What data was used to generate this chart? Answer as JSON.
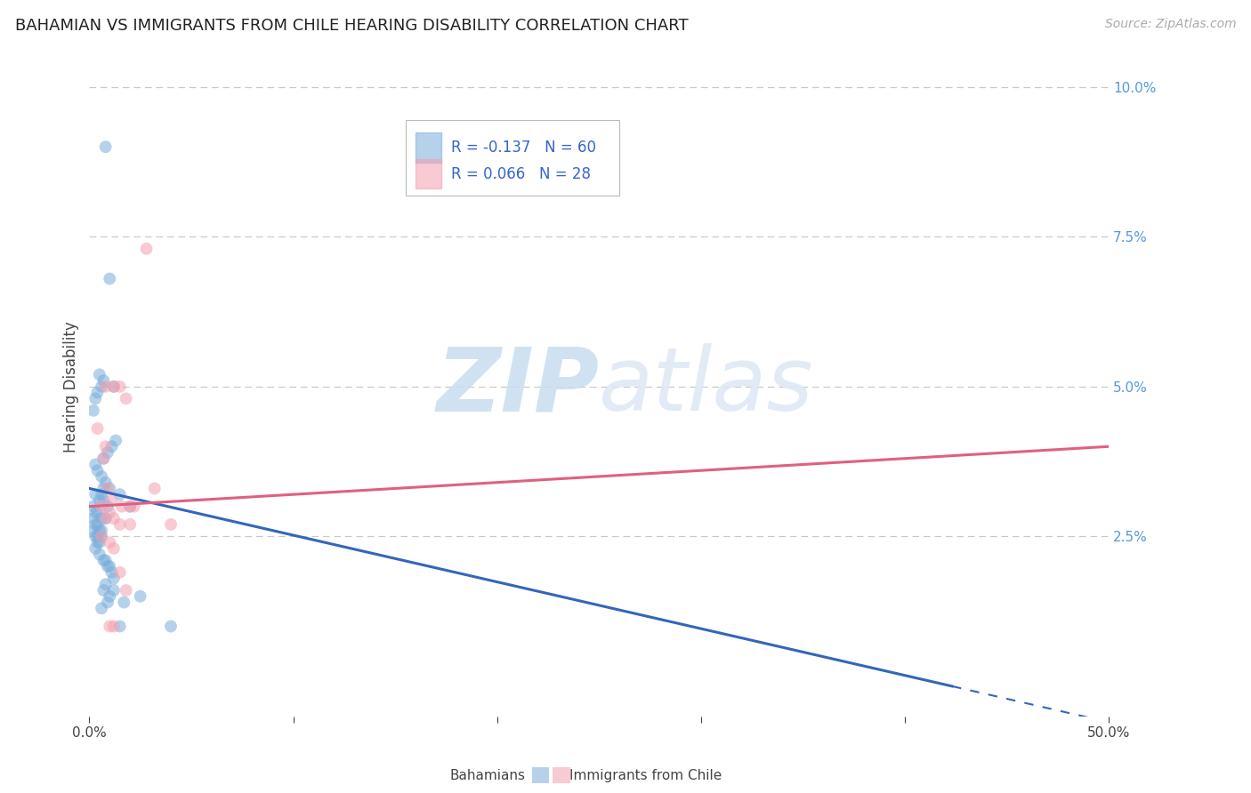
{
  "title": "BAHAMIAN VS IMMIGRANTS FROM CHILE HEARING DISABILITY CORRELATION CHART",
  "source": "Source: ZipAtlas.com",
  "ylabel": "Hearing Disability",
  "xlim": [
    0.0,
    0.5
  ],
  "ylim": [
    -0.005,
    0.105
  ],
  "ylim_data": [
    0.0,
    0.1
  ],
  "xtick_positions": [
    0.0,
    0.1,
    0.2,
    0.3,
    0.4,
    0.5
  ],
  "xtick_labels": [
    "0.0%",
    "",
    "",
    "",
    "",
    "50.0%"
  ],
  "yticks_right": [
    0.025,
    0.05,
    0.075,
    0.1
  ],
  "ytick_labels_right": [
    "2.5%",
    "5.0%",
    "7.5%",
    "10.0%"
  ],
  "grid_color": "#c8c8c8",
  "background_color": "#ffffff",
  "blue_color": "#7aaddc",
  "pink_color": "#f4a0b0",
  "blue_trend_color": "#3366bb",
  "pink_trend_color": "#e06080",
  "legend_R1": "R = -0.137",
  "legend_N1": "N = 60",
  "legend_R2": "R = 0.066",
  "legend_N2": "N = 28",
  "legend_label1": "Bahamians",
  "legend_label2": "Immigrants from Chile",
  "blue_scatter_x": [
    0.008,
    0.01,
    0.005,
    0.007,
    0.012,
    0.006,
    0.004,
    0.003,
    0.002,
    0.007,
    0.009,
    0.011,
    0.013,
    0.003,
    0.004,
    0.006,
    0.003,
    0.005,
    0.007,
    0.009,
    0.002,
    0.003,
    0.004,
    0.006,
    0.008,
    0.002,
    0.003,
    0.004,
    0.005,
    0.006,
    0.002,
    0.003,
    0.004,
    0.006,
    0.005,
    0.004,
    0.003,
    0.005,
    0.007,
    0.008,
    0.009,
    0.01,
    0.011,
    0.012,
    0.006,
    0.007,
    0.008,
    0.01,
    0.015,
    0.02,
    0.025,
    0.017,
    0.006,
    0.007,
    0.008,
    0.009,
    0.01,
    0.012,
    0.015,
    0.04
  ],
  "blue_scatter_y": [
    0.09,
    0.068,
    0.052,
    0.051,
    0.05,
    0.05,
    0.049,
    0.048,
    0.046,
    0.038,
    0.039,
    0.04,
    0.041,
    0.037,
    0.036,
    0.035,
    0.032,
    0.031,
    0.031,
    0.03,
    0.03,
    0.029,
    0.029,
    0.028,
    0.028,
    0.028,
    0.027,
    0.027,
    0.026,
    0.026,
    0.026,
    0.025,
    0.025,
    0.025,
    0.024,
    0.024,
    0.023,
    0.022,
    0.021,
    0.021,
    0.02,
    0.02,
    0.019,
    0.018,
    0.032,
    0.033,
    0.034,
    0.033,
    0.032,
    0.03,
    0.015,
    0.014,
    0.013,
    0.016,
    0.017,
    0.014,
    0.015,
    0.016,
    0.01,
    0.01
  ],
  "pink_scatter_x": [
    0.015,
    0.028,
    0.008,
    0.012,
    0.018,
    0.004,
    0.007,
    0.009,
    0.011,
    0.016,
    0.02,
    0.032,
    0.006,
    0.008,
    0.01,
    0.012,
    0.015,
    0.006,
    0.04,
    0.02,
    0.01,
    0.012,
    0.015,
    0.018,
    0.022,
    0.01,
    0.012,
    0.008
  ],
  "pink_scatter_y": [
    0.05,
    0.073,
    0.05,
    0.05,
    0.048,
    0.043,
    0.038,
    0.033,
    0.031,
    0.03,
    0.03,
    0.033,
    0.03,
    0.028,
    0.029,
    0.028,
    0.027,
    0.025,
    0.027,
    0.027,
    0.024,
    0.023,
    0.019,
    0.016,
    0.03,
    0.01,
    0.01,
    0.04
  ],
  "blue_trend_x0": 0.0,
  "blue_trend_y0": 0.033,
  "blue_trend_x1": 0.5,
  "blue_trend_y1": -0.006,
  "pink_trend_x0": 0.0,
  "pink_trend_y0": 0.03,
  "pink_trend_x1": 0.5,
  "pink_trend_y1": 0.04,
  "title_fontsize": 13,
  "source_fontsize": 10,
  "axis_tick_color": "#5599dd",
  "title_color": "#222222",
  "watermark_zip": "ZIP",
  "watermark_atlas": "atlas"
}
